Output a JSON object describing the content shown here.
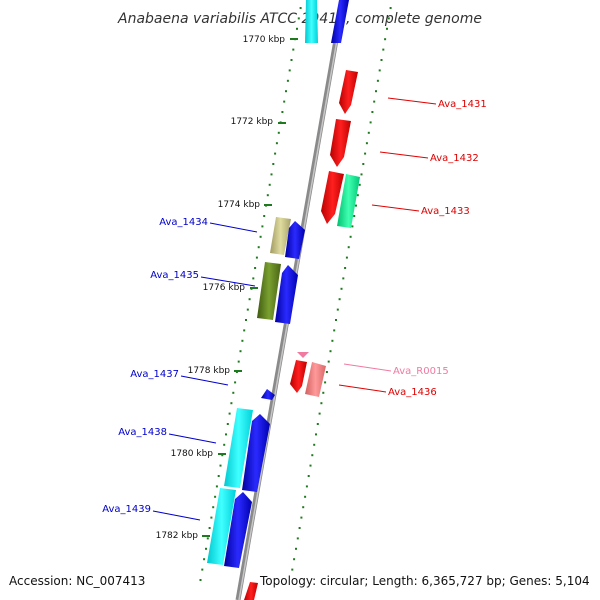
{
  "title": "Anabaena variabilis ATCC 29413, complete genome",
  "footer": {
    "accession": "Accession: NC_007413",
    "topology": "Topology: circular; Length: 6,365,727 bp; Genes: 5,104"
  },
  "colors": {
    "backbone": "#8a8a8a",
    "tick": "#1e7a1e",
    "forward_label": "#e00000",
    "reverse_label": "#0000cc",
    "rna_label": "#f07aa0"
  },
  "scale_labels": [
    "1770 kbp",
    "1772 kbp",
    "1774 kbp",
    "1776 kbp",
    "1778 kbp",
    "1780 kbp",
    "1782 kbp"
  ],
  "gene_labels": {
    "forward": [
      "Ava_1431",
      "Ava_1432",
      "Ava_1433",
      "Ava_1436"
    ],
    "rna": [
      "Ava_R0015"
    ],
    "reverse": [
      "Ava_1434",
      "Ava_1435",
      "Ava_1437",
      "Ava_1438",
      "Ava_1439"
    ]
  }
}
